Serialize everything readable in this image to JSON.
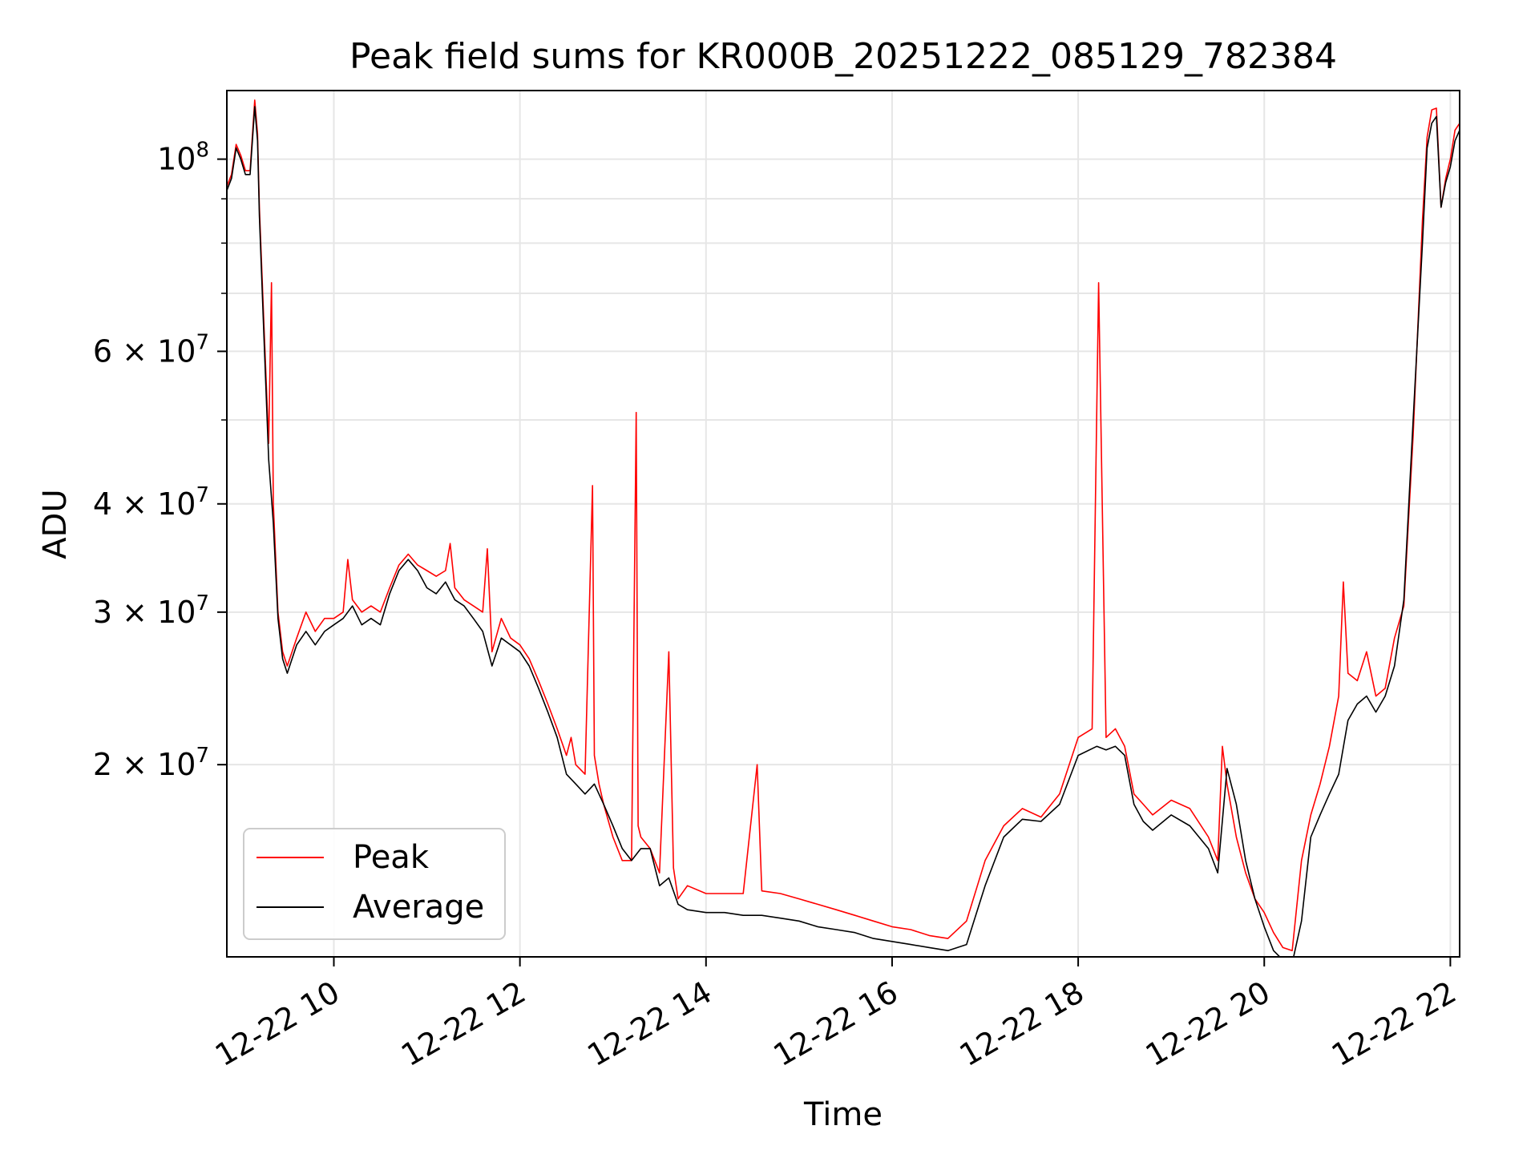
{
  "chart_data": {
    "type": "line",
    "title": "Peak field sums for KR000B_20251222_085129_782384",
    "xlabel": "Time",
    "ylabel": "ADU",
    "yscale": "log",
    "xlim": [
      8.85,
      22.1
    ],
    "ylim": [
      12000000,
      120000000
    ],
    "grid": true,
    "legend_position": "lower-left",
    "x_ticks": [
      {
        "x": 10,
        "label": "12-22 10"
      },
      {
        "x": 12,
        "label": "12-22 12"
      },
      {
        "x": 14,
        "label": "12-22 14"
      },
      {
        "x": 16,
        "label": "12-22 16"
      },
      {
        "x": 18,
        "label": "12-22 18"
      },
      {
        "x": 20,
        "label": "12-22 20"
      },
      {
        "x": 22,
        "label": "12-22 22"
      }
    ],
    "y_ticks": [
      {
        "y": 20000000,
        "base": "2 × 10",
        "exp": "7"
      },
      {
        "y": 30000000,
        "base": "3 × 10",
        "exp": "7"
      },
      {
        "y": 40000000,
        "base": "4 × 10",
        "exp": "7"
      },
      {
        "y": 60000000,
        "base": "6 × 10",
        "exp": "7"
      },
      {
        "y": 100000000,
        "base": "10",
        "exp": "8"
      }
    ],
    "y_minor_ticks": [
      50000000,
      70000000,
      80000000,
      90000000
    ],
    "series": [
      {
        "name": "Peak",
        "color": "#ff0000",
        "x": [
          8.85,
          8.9,
          8.95,
          9.0,
          9.05,
          9.1,
          9.15,
          9.18,
          9.2,
          9.25,
          9.3,
          9.33,
          9.35,
          9.4,
          9.45,
          9.5,
          9.6,
          9.7,
          9.8,
          9.9,
          10.0,
          10.1,
          10.15,
          10.2,
          10.3,
          10.4,
          10.5,
          10.6,
          10.7,
          10.8,
          10.9,
          11.0,
          11.1,
          11.2,
          11.25,
          11.3,
          11.4,
          11.5,
          11.6,
          11.65,
          11.7,
          11.8,
          11.9,
          12.0,
          12.1,
          12.2,
          12.3,
          12.4,
          12.5,
          12.55,
          12.6,
          12.7,
          12.78,
          12.8,
          12.85,
          12.9,
          13.0,
          13.1,
          13.2,
          13.25,
          13.27,
          13.3,
          13.4,
          13.5,
          13.6,
          13.65,
          13.7,
          13.8,
          14.0,
          14.2,
          14.4,
          14.55,
          14.6,
          14.8,
          15.0,
          15.2,
          15.4,
          15.6,
          15.8,
          16.0,
          16.2,
          16.4,
          16.6,
          16.8,
          17.0,
          17.2,
          17.4,
          17.6,
          17.8,
          18.0,
          18.15,
          18.22,
          18.3,
          18.4,
          18.5,
          18.6,
          18.7,
          18.8,
          19.0,
          19.2,
          19.4,
          19.5,
          19.55,
          19.6,
          19.7,
          19.8,
          19.9,
          20.0,
          20.1,
          20.2,
          20.3,
          20.4,
          20.5,
          20.6,
          20.7,
          20.8,
          20.85,
          20.9,
          21.0,
          21.1,
          21.2,
          21.3,
          21.4,
          21.5,
          21.6,
          21.7,
          21.75,
          21.8,
          21.85,
          21.9,
          21.95,
          22.0,
          22.05,
          22.1
        ],
        "y": [
          93000000,
          96000000,
          104000000,
          101000000,
          97000000,
          97000000,
          117000000,
          107000000,
          88000000,
          64000000,
          47000000,
          72000000,
          40000000,
          30000000,
          27000000,
          26000000,
          28000000,
          30000000,
          28500000,
          29500000,
          29500000,
          30000000,
          34500000,
          31000000,
          30000000,
          30500000,
          30000000,
          32000000,
          34000000,
          35000000,
          34000000,
          33500000,
          33000000,
          33500000,
          36000000,
          32000000,
          31000000,
          30500000,
          30000000,
          35500000,
          27000000,
          29500000,
          28000000,
          27500000,
          26500000,
          25000000,
          23500000,
          22000000,
          20500000,
          21500000,
          20000000,
          19500000,
          42000000,
          20500000,
          19000000,
          18000000,
          16500000,
          15500000,
          15500000,
          51000000,
          17000000,
          16500000,
          16000000,
          15000000,
          27000000,
          15200000,
          14000000,
          14500000,
          14200000,
          14200000,
          14200000,
          20000000,
          14300000,
          14200000,
          14000000,
          13800000,
          13600000,
          13400000,
          13200000,
          13000000,
          12900000,
          12700000,
          12600000,
          13200000,
          15500000,
          17000000,
          17800000,
          17400000,
          18500000,
          21500000,
          22000000,
          72000000,
          21500000,
          22000000,
          21000000,
          18500000,
          18000000,
          17500000,
          18200000,
          17800000,
          16500000,
          15500000,
          21000000,
          19000000,
          16500000,
          15000000,
          14000000,
          13500000,
          12800000,
          12300000,
          12200000,
          15500000,
          17500000,
          19000000,
          21000000,
          24000000,
          32500000,
          25500000,
          25000000,
          27000000,
          24000000,
          24500000,
          28000000,
          30500000,
          48000000,
          85000000,
          106000000,
          114000000,
          114500000,
          88000000,
          95000000,
          100000000,
          108000000,
          110000000
        ],
        "y_note": ""
      },
      {
        "name": "Average",
        "color": "#000000",
        "x": [
          8.85,
          8.9,
          8.95,
          9.0,
          9.05,
          9.1,
          9.15,
          9.18,
          9.2,
          9.25,
          9.3,
          9.35,
          9.4,
          9.45,
          9.5,
          9.6,
          9.7,
          9.8,
          9.9,
          10.0,
          10.1,
          10.2,
          10.3,
          10.4,
          10.5,
          10.6,
          10.7,
          10.8,
          10.9,
          11.0,
          11.1,
          11.2,
          11.3,
          11.4,
          11.5,
          11.6,
          11.7,
          11.8,
          11.9,
          12.0,
          12.1,
          12.2,
          12.3,
          12.4,
          12.5,
          12.6,
          12.7,
          12.8,
          12.9,
          13.0,
          13.1,
          13.2,
          13.3,
          13.4,
          13.5,
          13.6,
          13.7,
          13.8,
          14.0,
          14.2,
          14.4,
          14.6,
          14.8,
          15.0,
          15.2,
          15.4,
          15.6,
          15.8,
          16.0,
          16.2,
          16.4,
          16.6,
          16.8,
          17.0,
          17.2,
          17.4,
          17.6,
          17.8,
          18.0,
          18.2,
          18.3,
          18.4,
          18.5,
          18.6,
          18.7,
          18.8,
          19.0,
          19.2,
          19.4,
          19.5,
          19.6,
          19.7,
          19.8,
          19.9,
          20.0,
          20.1,
          20.2,
          20.3,
          20.4,
          20.5,
          20.6,
          20.7,
          20.8,
          20.9,
          21.0,
          21.1,
          21.2,
          21.3,
          21.4,
          21.5,
          21.6,
          21.7,
          21.75,
          21.8,
          21.85,
          21.9,
          21.95,
          22.0,
          22.05,
          22.1
        ],
        "y": [
          92000000,
          95000000,
          103000000,
          100000000,
          96000000,
          96000000,
          115000000,
          105000000,
          86000000,
          62000000,
          45000000,
          38000000,
          29500000,
          26500000,
          25500000,
          27500000,
          28500000,
          27500000,
          28500000,
          29000000,
          29500000,
          30500000,
          29000000,
          29500000,
          29000000,
          31500000,
          33500000,
          34500000,
          33500000,
          32000000,
          31500000,
          32500000,
          31000000,
          30500000,
          29500000,
          28500000,
          26000000,
          28000000,
          27500000,
          27000000,
          26000000,
          24500000,
          23000000,
          21500000,
          19500000,
          19000000,
          18500000,
          19000000,
          18000000,
          17000000,
          16000000,
          15500000,
          16000000,
          16000000,
          14500000,
          14800000,
          13800000,
          13600000,
          13500000,
          13500000,
          13400000,
          13400000,
          13300000,
          13200000,
          13000000,
          12900000,
          12800000,
          12600000,
          12500000,
          12400000,
          12300000,
          12200000,
          12400000,
          14500000,
          16500000,
          17300000,
          17200000,
          18000000,
          20500000,
          21000000,
          20800000,
          21000000,
          20500000,
          18000000,
          17200000,
          16800000,
          17500000,
          17000000,
          16000000,
          15000000,
          19800000,
          18000000,
          15500000,
          14000000,
          13000000,
          12200000,
          11900000,
          11800000,
          13200000,
          16500000,
          17500000,
          18500000,
          19500000,
          22500000,
          23500000,
          24000000,
          23000000,
          24000000,
          26000000,
          31000000,
          50000000,
          80000000,
          103000000,
          110000000,
          112000000,
          88000000,
          94000000,
          98000000,
          105000000,
          108000000
        ]
      }
    ]
  }
}
